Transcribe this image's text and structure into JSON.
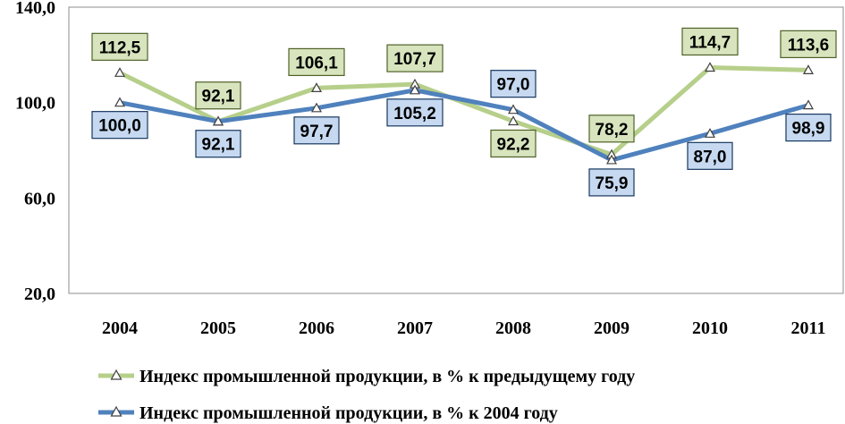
{
  "chart_data": {
    "type": "line",
    "categories": [
      "2004",
      "2005",
      "2006",
      "2007",
      "2008",
      "2009",
      "2010",
      "2011"
    ],
    "ylim": [
      20,
      140
    ],
    "yticks": [
      "20,0",
      "60,0",
      "100,0",
      "140,0"
    ],
    "ytick_values": [
      20,
      60,
      100,
      140
    ],
    "grid": false,
    "legend_position": "bottom",
    "series": [
      {
        "name": "Индекс промышленной продукции, в % к предыдущему году",
        "values": [
          112.5,
          92.1,
          106.1,
          107.7,
          92.2,
          78.2,
          114.7,
          113.6
        ],
        "labels": [
          "112,5",
          "92,1",
          "106,1",
          "107,7",
          "92,2",
          "78,2",
          "114,7",
          "113,6"
        ],
        "color": "#b6cf8a",
        "label_fill": "#d7e4bd",
        "label_border": "#4f6228"
      },
      {
        "name": "Индекс промышленной продукции, в % к 2004 году",
        "values": [
          100.0,
          92.1,
          97.7,
          105.2,
          97.0,
          75.9,
          87.0,
          98.9
        ],
        "labels": [
          "100,0",
          "92,1",
          "97,7",
          "105,2",
          "97,0",
          "75,9",
          "87,0",
          "98,9"
        ],
        "color": "#4f81bd",
        "label_fill": "#c6d9f1",
        "label_border": "#17375e"
      }
    ]
  }
}
